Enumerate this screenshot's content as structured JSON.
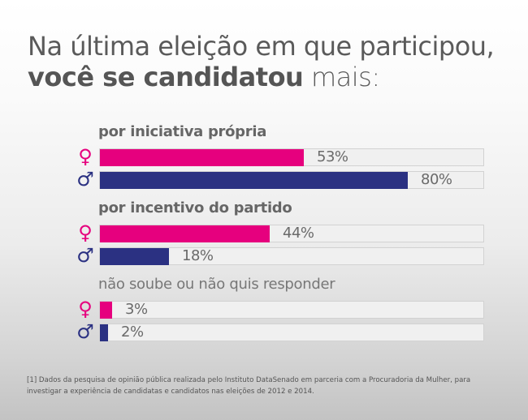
{
  "title": {
    "line1": "Na última eleição em que participou,",
    "line2_bold": "você se candidatou",
    "line2_rest": " mais:"
  },
  "colors": {
    "female": "#e6007e",
    "male": "#2b3182",
    "track": "#f0f0f0",
    "text": "#666666"
  },
  "legend": {
    "female_symbol": "♀",
    "male_symbol": "♂",
    "female_icon": "female-symbol-icon",
    "male_icon": "male-symbol-icon"
  },
  "chart_data": {
    "type": "bar",
    "orientation": "horizontal",
    "title": "Na última eleição em que participou, você se candidatou mais:",
    "categories": [
      "por iniciativa própria",
      "por incentivo do partido",
      "não soube ou não quis responder"
    ],
    "series": [
      {
        "name": "female",
        "symbol": "♀",
        "values": [
          53,
          44,
          3
        ],
        "labels": [
          "53%",
          "44%",
          "3%"
        ]
      },
      {
        "name": "male",
        "symbol": "♂",
        "values": [
          80,
          18,
          2
        ],
        "labels": [
          "80%",
          "18%",
          "2%"
        ]
      }
    ],
    "unit": "%",
    "xlim": [
      0,
      100
    ],
    "grid": false
  },
  "footnote": {
    "line1": "[1] Dados da pesquisa de opinião pública realizada pelo Instituto DataSenado em parceria com a Procuradoria da Mulher, para",
    "line2": "investigar a experiência de candidatas e candidatos nas eleições de 2012 e 2014."
  }
}
